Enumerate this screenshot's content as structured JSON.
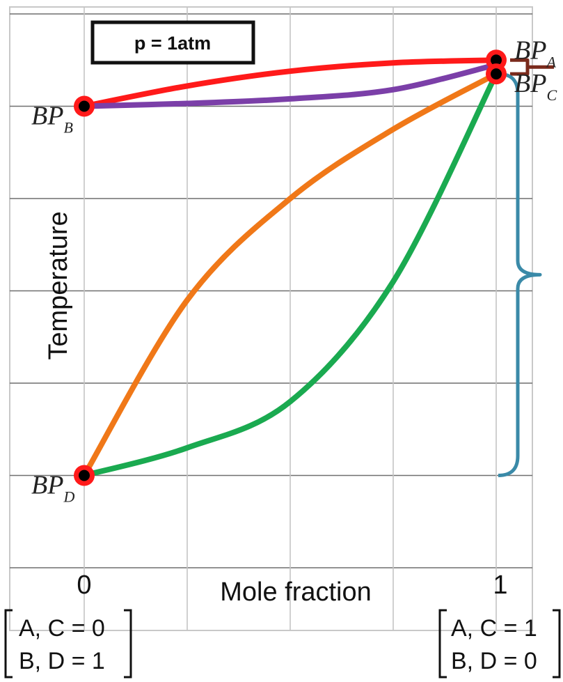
{
  "chart_data": {
    "type": "line",
    "title": "p = 1atm",
    "xlabel": "Mole fraction",
    "ylabel": "Temperature",
    "x_ticks": [
      "0",
      "1"
    ],
    "xlim": [
      0,
      1
    ],
    "ylim": [
      0,
      6
    ],
    "grid": true,
    "series": [
      {
        "color": "#ff1a1a",
        "x": [
          0,
          0.25,
          0.5,
          0.75,
          1.0
        ],
        "y": [
          5.0,
          5.22,
          5.38,
          5.47,
          5.5
        ]
      },
      {
        "color": "#7b3fa8",
        "x": [
          0,
          0.25,
          0.5,
          0.75,
          1.0
        ],
        "y": [
          5.0,
          5.03,
          5.08,
          5.18,
          5.45
        ]
      },
      {
        "color": "#f07818",
        "x": [
          0,
          0.25,
          0.5,
          0.75,
          1.0
        ],
        "y": [
          1.0,
          2.9,
          4.0,
          4.75,
          5.35
        ]
      },
      {
        "color": "#1aaa50",
        "x": [
          0,
          0.25,
          0.5,
          0.75,
          1.0
        ],
        "y": [
          1.0,
          1.3,
          1.8,
          3.1,
          5.35
        ]
      }
    ],
    "points": [
      {
        "label_main": "BP",
        "label_sub": "A",
        "x": 1.0,
        "y": 5.5
      },
      {
        "label_main": "BP",
        "label_sub": "C",
        "x": 1.0,
        "y": 5.35
      },
      {
        "label_main": "BP",
        "label_sub": "B",
        "x": 0.0,
        "y": 5.0
      },
      {
        "label_main": "BP",
        "label_sub": "D",
        "x": 0.0,
        "y": 1.0
      }
    ],
    "brackets": [
      {
        "color": "#7a2a1c",
        "from_point": "A",
        "to_point": "C"
      },
      {
        "color": "#3a8aa8",
        "from_y": 5.35,
        "to_y": 1.0
      }
    ]
  },
  "composition_left": {
    "line1": "A, C = 0",
    "line2": "B, D = 1"
  },
  "composition_right": {
    "line1": "A, C = 1",
    "line2": "B, D = 0"
  }
}
